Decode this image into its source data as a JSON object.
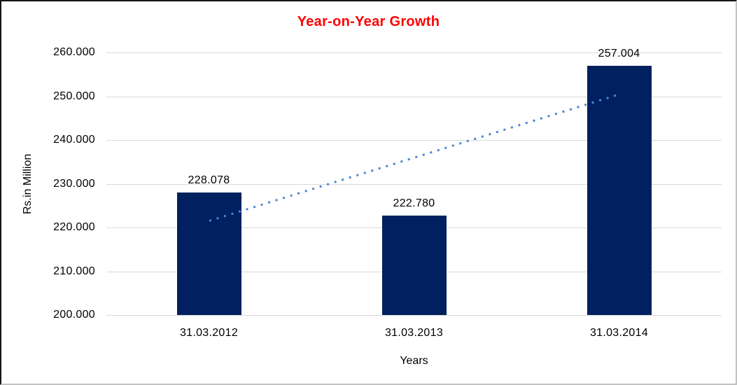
{
  "chart_data": {
    "type": "bar",
    "title": "Year-on-Year Growth",
    "title_color": "#FF0000",
    "xlabel": "Years",
    "ylabel": "Rs.in Million",
    "categories": [
      "31.03.2012",
      "31.03.2013",
      "31.03.2014"
    ],
    "values": [
      228.078,
      222.78,
      257.004
    ],
    "data_labels": [
      "228.078",
      "222.780",
      "257.004"
    ],
    "y_ticks": [
      "260.000",
      "250.000",
      "240.000",
      "230.000",
      "220.000",
      "210.000",
      "200.000"
    ],
    "ylim": [
      200,
      260
    ],
    "grid": true,
    "legend": "none",
    "bar_color": "#002060",
    "gridline_color": "#D9D9D9",
    "axis_text_color": "#000000",
    "trendline": {
      "type": "linear",
      "style": "dotted",
      "color": "#4B87D5",
      "y_start": 221.491,
      "y_end": 250.417
    }
  }
}
